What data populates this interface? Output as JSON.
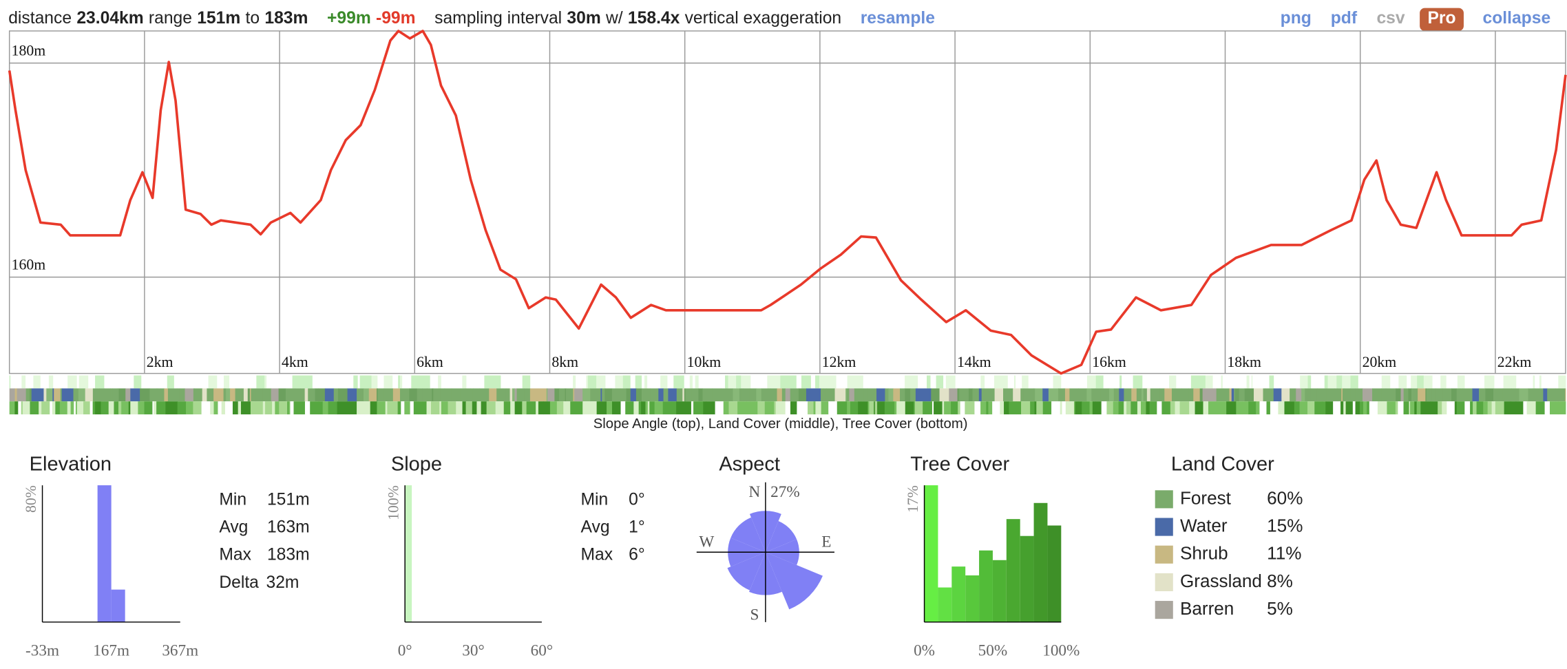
{
  "header": {
    "distance_label": "distance",
    "distance": "23.04km",
    "range_label": "range",
    "range_min": "151m",
    "range_to": "to",
    "range_max": "183m",
    "gain": "+99m",
    "loss": "-99m",
    "interval_label": "sampling interval",
    "interval": "30m",
    "exag_prefix": "w/",
    "exaggeration": "158.4x",
    "exag_suffix": "vertical exaggeration",
    "resample": "resample"
  },
  "links": [
    "png",
    "pdf",
    "csv",
    "Pro",
    "collapse"
  ],
  "strips_caption": "Slope Angle (top), Land Cover (middle), Tree Cover (bottom)",
  "chart_data": [
    {
      "type": "line",
      "color": "#e8392a",
      "grid": true,
      "xlim": [
        0,
        23.04
      ],
      "ylim": [
        151,
        183
      ],
      "xticks": [
        {
          "value": 2,
          "label": "2km"
        },
        {
          "value": 4,
          "label": "4km"
        },
        {
          "value": 6,
          "label": "6km"
        },
        {
          "value": 8,
          "label": "8km"
        },
        {
          "value": 10,
          "label": "10km"
        },
        {
          "value": 12,
          "label": "12km"
        },
        {
          "value": 14,
          "label": "14km"
        },
        {
          "value": 16,
          "label": "16km"
        },
        {
          "value": 18,
          "label": "18km"
        },
        {
          "value": 20,
          "label": "20km"
        },
        {
          "value": 22,
          "label": "22km"
        }
      ],
      "yticks": [
        {
          "value": 160,
          "label": "160m"
        },
        {
          "value": 180,
          "label": "180m"
        }
      ],
      "x": [
        0,
        0.09,
        0.24,
        0.46,
        0.76,
        0.9,
        1.64,
        1.79,
        1.97,
        2.12,
        2.24,
        2.36,
        2.46,
        2.61,
        2.83,
        2.99,
        3.13,
        3.57,
        3.72,
        3.87,
        4.16,
        4.31,
        4.61,
        4.76,
        4.98,
        5.2,
        5.41,
        5.64,
        5.76,
        5.93,
        6.12,
        6.24,
        6.39,
        6.61,
        6.83,
        7.05,
        7.27,
        7.5,
        7.69,
        7.94,
        8.09,
        8.43,
        8.76,
        8.98,
        9.2,
        9.5,
        9.72,
        11.13,
        11.27,
        11.72,
        12.01,
        12.31,
        12.61,
        12.83,
        13.2,
        13.5,
        13.87,
        14.16,
        14.53,
        14.83,
        15.13,
        15.57,
        15.87,
        16.09,
        16.31,
        16.68,
        17.05,
        17.5,
        17.79,
        18.16,
        18.68,
        19.13,
        19.57,
        19.87,
        20.06,
        20.24,
        20.39,
        20.6,
        20.83,
        20.98,
        21.13,
        21.27,
        21.5,
        22.24,
        22.39,
        22.68,
        22.9,
        23.04
      ],
      "values": [
        179.3,
        175.6,
        170,
        165.1,
        164.9,
        163.9,
        163.9,
        167.2,
        169.8,
        167.4,
        175.6,
        180.1,
        176.5,
        166.3,
        165.9,
        164.9,
        165.3,
        164.9,
        164,
        165.1,
        166,
        165.1,
        167.2,
        170,
        172.8,
        174.2,
        177.5,
        182.1,
        183,
        182.3,
        183,
        181.7,
        177.9,
        175.1,
        169.1,
        164.4,
        160.7,
        159.8,
        157.1,
        158.1,
        157.9,
        155.2,
        159.3,
        158.1,
        156.2,
        157.4,
        156.9,
        156.9,
        157.4,
        159.3,
        160.8,
        162.1,
        163.8,
        163.7,
        159.7,
        157.9,
        155.8,
        156.9,
        155,
        154.6,
        152.7,
        151,
        151.8,
        154.9,
        155.1,
        158.1,
        156.9,
        157.4,
        160.2,
        161.8,
        163,
        163,
        164.4,
        165.3,
        169.1,
        170.9,
        167.2,
        164.9,
        164.6,
        167.2,
        169.8,
        167.2,
        163.9,
        163.9,
        164.9,
        165.3,
        171.9,
        178.9
      ]
    },
    {
      "type": "histogram",
      "title": "Elevation",
      "color": "#8080f5",
      "xlim": [
        -33,
        367
      ],
      "ylim": [
        0,
        80
      ],
      "xticks": [
        {
          "value": -33,
          "label": "-33m"
        },
        {
          "value": 167,
          "label": "167m"
        },
        {
          "value": 367,
          "label": "367m"
        }
      ],
      "yticks": [
        {
          "value": 80,
          "label": "80%"
        }
      ],
      "bins": [
        127,
        167,
        207
      ],
      "values": [
        80,
        19
      ],
      "stats": [
        {
          "label": "Min",
          "value": "151m"
        },
        {
          "label": "Avg",
          "value": "163m"
        },
        {
          "label": "Max",
          "value": "183m"
        },
        {
          "label": "Delta",
          "value": "32m"
        }
      ]
    },
    {
      "type": "histogram",
      "title": "Slope",
      "color": "#c8f5c0",
      "xlim": [
        0,
        60
      ],
      "ylim": [
        0,
        100
      ],
      "xticks": [
        {
          "value": 0,
          "label": "0°"
        },
        {
          "value": 30,
          "label": "30°"
        },
        {
          "value": 60,
          "label": "60°"
        }
      ],
      "yticks": [
        {
          "value": 100,
          "label": "100%"
        }
      ],
      "bins": [
        0,
        3
      ],
      "values": [
        100
      ],
      "stats": [
        {
          "label": "Min",
          "value": "0°"
        },
        {
          "label": "Avg",
          "value": "1°"
        },
        {
          "label": "Max",
          "value": "6°"
        }
      ]
    },
    {
      "type": "rose",
      "title": "Aspect",
      "color": "#8080f5",
      "categories": [
        "N",
        null,
        "E",
        null,
        "S",
        null,
        "W",
        null
      ],
      "values": [
        12,
        8,
        8,
        27,
        13,
        12,
        10,
        10
      ],
      "rticks": [
        {
          "value": 27,
          "label": "27%"
        }
      ]
    },
    {
      "type": "histogram",
      "title": "Tree Cover",
      "xlim": [
        0,
        100
      ],
      "ylim": [
        0,
        17
      ],
      "xticks": [
        {
          "value": 0,
          "label": "0%"
        },
        {
          "value": 50,
          "label": "50%"
        },
        {
          "value": 100,
          "label": "100%"
        }
      ],
      "yticks": [
        {
          "value": 17,
          "label": "17%"
        }
      ],
      "bins": [
        0,
        10,
        20,
        30,
        40,
        50,
        60,
        70,
        80,
        90,
        100
      ],
      "values": [
        17,
        4.3,
        6.9,
        5.8,
        8.9,
        7.7,
        12.8,
        10.7,
        14.8,
        12
      ],
      "colors": [
        "#66ee44",
        "#62e044",
        "#5cd440",
        "#58c83c",
        "#52bc38",
        "#4eb234",
        "#4aa830",
        "#46a02e",
        "#42982a",
        "#3e9028"
      ]
    }
  ],
  "land_cover": {
    "title": "Land Cover",
    "items": [
      {
        "name": "Forest",
        "value": 60,
        "label": "60%",
        "color": "#7aab6b"
      },
      {
        "name": "Water",
        "value": 15,
        "label": "15%",
        "color": "#4a6aa8"
      },
      {
        "name": "Shrub",
        "value": 11,
        "label": "11%",
        "color": "#c8b882"
      },
      {
        "name": "Grassland",
        "value": 8,
        "label": "8%",
        "color": "#e2e2c8"
      },
      {
        "name": "Barren",
        "value": 5,
        "label": "5%",
        "color": "#aaa69e"
      }
    ]
  }
}
